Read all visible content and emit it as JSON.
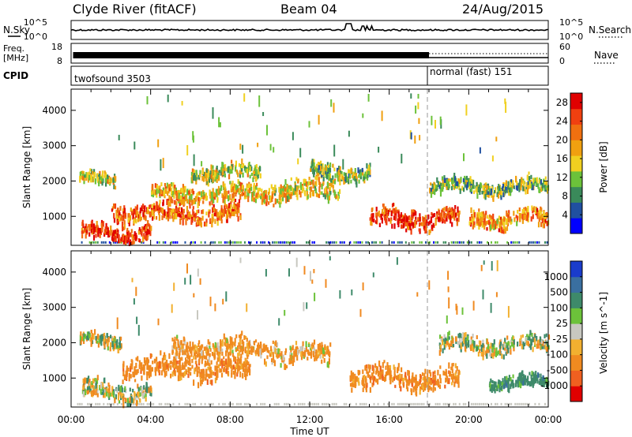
{
  "header": {
    "station": "Clyde River (fitACF)",
    "beam": "Beam 04",
    "date": "24/Aug/2015"
  },
  "nsky_panel": {
    "left_label": "N.Sky",
    "right_label": "N.Search",
    "ticks_left": [
      "10^5",
      "10^0"
    ],
    "ticks_right": [
      "10^5",
      "10^0"
    ]
  },
  "freq_panel": {
    "left_label_1": "Freq.",
    "left_label_2": "[MHz]",
    "right_label": "Nave",
    "ticks_left": [
      "18",
      "8"
    ],
    "ticks_right": [
      "60",
      "0"
    ]
  },
  "cpid_panel": {
    "label": "CPID",
    "mode_1": "twofsound 3503",
    "mode_2": "normal (fast) 151"
  },
  "colors": {
    "power_scale": [
      "#0000ff",
      "#2050a0",
      "#3a8a5a",
      "#6cc23a",
      "#f0d020",
      "#f0a010",
      "#f07010",
      "#f04010",
      "#e00000"
    ],
    "velocity_scale": [
      "#1a3ccc",
      "#3a6fa0",
      "#3e8a6a",
      "#6cc23a",
      "#c8c8c0",
      "#f2b030",
      "#f08a20",
      "#f06020",
      "#e00000"
    ]
  },
  "chart_data": [
    {
      "type": "heatmap",
      "title": "",
      "xlabel": "",
      "ylabel": "Slant Range [km]",
      "x_range": [
        "00:00",
        "00:00"
      ],
      "x_ticks": [
        "00:00",
        "04:00",
        "08:00",
        "12:00",
        "16:00",
        "20:00",
        "00:00"
      ],
      "ylim": [
        180,
        4600
      ],
      "y_ticks": [
        1000,
        2000,
        3000,
        4000
      ],
      "colorbar": {
        "label": "Power [dB]",
        "ticks": [
          4,
          8,
          12,
          16,
          20,
          24,
          28
        ],
        "range": [
          0,
          30
        ]
      },
      "scatter_regions": [
        {
          "t_start": 0.5,
          "t_end": 4.0,
          "r_center": 600,
          "r_halfwidth": 180,
          "value": 26
        },
        {
          "t_start": 0.4,
          "t_end": 2.2,
          "r_center": 2100,
          "r_halfwidth": 150,
          "value": 14
        },
        {
          "t_start": 2.0,
          "t_end": 8.5,
          "r_center": 1150,
          "r_halfwidth": 220,
          "value": 22
        },
        {
          "t_start": 4.0,
          "t_end": 10.0,
          "r_center": 1700,
          "r_halfwidth": 200,
          "value": 18
        },
        {
          "t_start": 6.0,
          "t_end": 9.5,
          "r_center": 2300,
          "r_halfwidth": 180,
          "value": 14
        },
        {
          "t_start": 10.0,
          "t_end": 13.5,
          "r_center": 1800,
          "r_halfwidth": 250,
          "value": 16
        },
        {
          "t_start": 12.0,
          "t_end": 15.0,
          "r_center": 2300,
          "r_halfwidth": 200,
          "value": 12
        },
        {
          "t_start": 15.0,
          "t_end": 19.5,
          "r_center": 1000,
          "r_halfwidth": 250,
          "value": 25
        },
        {
          "t_start": 18.0,
          "t_end": 24.0,
          "r_center": 1900,
          "r_halfwidth": 180,
          "value": 12
        },
        {
          "t_start": 20.0,
          "t_end": 24.0,
          "r_center": 1000,
          "r_halfwidth": 220,
          "value": 20
        }
      ]
    },
    {
      "type": "heatmap",
      "title": "",
      "xlabel": "Time UT",
      "ylabel": "Slant Range [km]",
      "x_range": [
        "00:00",
        "00:00"
      ],
      "x_ticks": [
        "00:00",
        "04:00",
        "08:00",
        "12:00",
        "16:00",
        "20:00",
        "00:00"
      ],
      "ylim": [
        180,
        4600
      ],
      "y_ticks": [
        1000,
        2000,
        3000,
        4000
      ],
      "colorbar": {
        "label": "Velocity [m s^-1]",
        "ticks": [
          1000,
          500,
          100,
          25,
          -25,
          -100,
          -500,
          -1000
        ]
      },
      "scatter_regions": [
        {
          "t_start": 0.4,
          "t_end": 2.5,
          "r_center": 2100,
          "r_halfwidth": 150,
          "value": 0
        },
        {
          "t_start": 0.5,
          "t_end": 4.0,
          "r_center": 700,
          "r_halfwidth": 220,
          "value": 0
        },
        {
          "t_start": 2.5,
          "t_end": 9.0,
          "r_center": 1350,
          "r_halfwidth": 260,
          "value": -300
        },
        {
          "t_start": 5.0,
          "t_end": 10.5,
          "r_center": 1900,
          "r_halfwidth": 250,
          "value": -200
        },
        {
          "t_start": 10.5,
          "t_end": 13.0,
          "r_center": 1700,
          "r_halfwidth": 250,
          "value": -150
        },
        {
          "t_start": 14.0,
          "t_end": 19.5,
          "r_center": 1050,
          "r_halfwidth": 260,
          "value": -300
        },
        {
          "t_start": 18.5,
          "t_end": 24.0,
          "r_center": 2000,
          "r_halfwidth": 200,
          "value": 0
        },
        {
          "t_start": 21.0,
          "t_end": 24.0,
          "r_center": 950,
          "r_halfwidth": 150,
          "value": 300
        }
      ]
    }
  ]
}
